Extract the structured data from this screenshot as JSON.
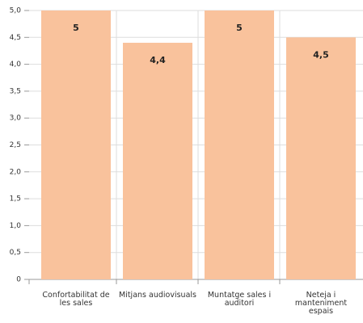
{
  "chart_data": {
    "type": "bar",
    "categories": [
      "Confortabilitat de les sales",
      "Mitjans audiovisuals",
      "Muntatge sales i auditori",
      "Neteja i manteniment espais"
    ],
    "values": [
      5,
      4.4,
      5,
      4.5
    ],
    "value_labels": [
      "5",
      "4,4",
      "5",
      "4,5"
    ],
    "color": "#f9c29c",
    "ylim": [
      0,
      5
    ],
    "yticks": [
      0,
      {
        "value": 0.5,
        "label": "0,5"
      },
      {
        "value": 1,
        "label": "1,0"
      },
      {
        "value": 1.5,
        "label": "1,5"
      },
      {
        "value": 2,
        "label": "2,0"
      },
      {
        "value": 2.5,
        "label": "2,5"
      },
      {
        "value": 3,
        "label": "3,0"
      },
      {
        "value": 3.5,
        "label": "3,5"
      },
      {
        "value": 4,
        "label": "4,0"
      },
      {
        "value": 4.5,
        "label": "4,5"
      },
      {
        "value": 5,
        "label": "5,0"
      }
    ],
    "grid": true
  }
}
